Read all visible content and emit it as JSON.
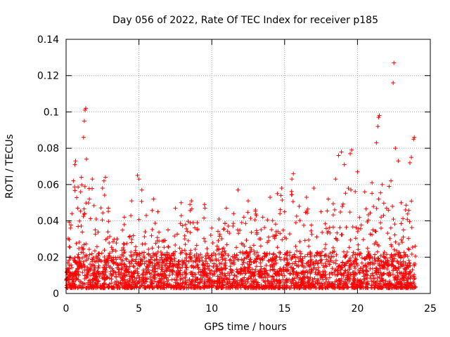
{
  "chart_data": {
    "type": "scatter",
    "title": "Day 056 of 2022, Rate Of TEC Index for receiver p185",
    "xlabel": "GPS time / hours",
    "ylabel": "ROTI / TECUs",
    "xlim": [
      0,
      25
    ],
    "ylim": [
      0,
      0.14
    ],
    "x_ticks": [
      "0",
      "5",
      "10",
      "15",
      "20",
      "25"
    ],
    "y_ticks": [
      "0",
      "0.02",
      "0.04",
      "0.06",
      "0.08",
      "0.1",
      "0.12",
      "0.14"
    ],
    "grid": true,
    "marker": "plus",
    "series": [
      {
        "color": "#ff0000",
        "points": [
          [
            0.1,
            0.008
          ],
          [
            0.3,
            0.036
          ],
          [
            0.4,
            0.044
          ],
          [
            0.5,
            0.062
          ],
          [
            0.6,
            0.071
          ],
          [
            0.65,
            0.073
          ],
          [
            0.8,
            0.047
          ],
          [
            1.0,
            0.056
          ],
          [
            1.05,
            0.064
          ],
          [
            1.2,
            0.086
          ],
          [
            1.25,
            0.095
          ],
          [
            1.3,
            0.101
          ],
          [
            1.35,
            0.102
          ],
          [
            1.4,
            0.074
          ],
          [
            1.6,
            0.052
          ],
          [
            1.8,
            0.063
          ],
          [
            2.0,
            0.035
          ],
          [
            2.5,
            0.058
          ],
          [
            2.6,
            0.062
          ],
          [
            2.7,
            0.064
          ],
          [
            2.9,
            0.047
          ],
          [
            3.5,
            0.03
          ],
          [
            4.0,
            0.042
          ],
          [
            4.5,
            0.051
          ],
          [
            4.9,
            0.065
          ],
          [
            5.0,
            0.063
          ],
          [
            5.2,
            0.057
          ],
          [
            5.5,
            0.043
          ],
          [
            6.0,
            0.052
          ],
          [
            6.3,
            0.045
          ],
          [
            7.0,
            0.035
          ],
          [
            7.5,
            0.047
          ],
          [
            7.9,
            0.05
          ],
          [
            8.2,
            0.038
          ],
          [
            8.5,
            0.049
          ],
          [
            8.6,
            0.051
          ],
          [
            9.0,
            0.039
          ],
          [
            9.5,
            0.049
          ],
          [
            10.0,
            0.036
          ],
          [
            10.5,
            0.041
          ],
          [
            11.0,
            0.047
          ],
          [
            11.5,
            0.044
          ],
          [
            11.8,
            0.057
          ],
          [
            12.2,
            0.042
          ],
          [
            12.5,
            0.051
          ],
          [
            13.0,
            0.046
          ],
          [
            13.5,
            0.042
          ],
          [
            14.0,
            0.053
          ],
          [
            14.5,
            0.055
          ],
          [
            14.8,
            0.058
          ],
          [
            15.0,
            0.045
          ],
          [
            15.5,
            0.063
          ],
          [
            15.6,
            0.066
          ],
          [
            16.0,
            0.048
          ],
          [
            16.5,
            0.053
          ],
          [
            17.0,
            0.058
          ],
          [
            17.5,
            0.045
          ],
          [
            18.0,
            0.052
          ],
          [
            18.5,
            0.063
          ],
          [
            18.7,
            0.076
          ],
          [
            18.9,
            0.078
          ],
          [
            19.1,
            0.071
          ],
          [
            19.5,
            0.077
          ],
          [
            19.6,
            0.079
          ],
          [
            20.0,
            0.067
          ],
          [
            20.5,
            0.056
          ],
          [
            21.0,
            0.061
          ],
          [
            21.3,
            0.083
          ],
          [
            21.4,
            0.092
          ],
          [
            21.45,
            0.097
          ],
          [
            21.5,
            0.098
          ],
          [
            21.7,
            0.06
          ],
          [
            22.0,
            0.047
          ],
          [
            22.3,
            0.062
          ],
          [
            22.45,
            0.116
          ],
          [
            22.5,
            0.127
          ],
          [
            22.6,
            0.08
          ],
          [
            22.8,
            0.073
          ],
          [
            23.0,
            0.05
          ],
          [
            23.3,
            0.046
          ],
          [
            23.6,
            0.072
          ],
          [
            23.7,
            0.075
          ],
          [
            23.85,
            0.085
          ],
          [
            23.9,
            0.086
          ]
        ]
      }
    ]
  }
}
